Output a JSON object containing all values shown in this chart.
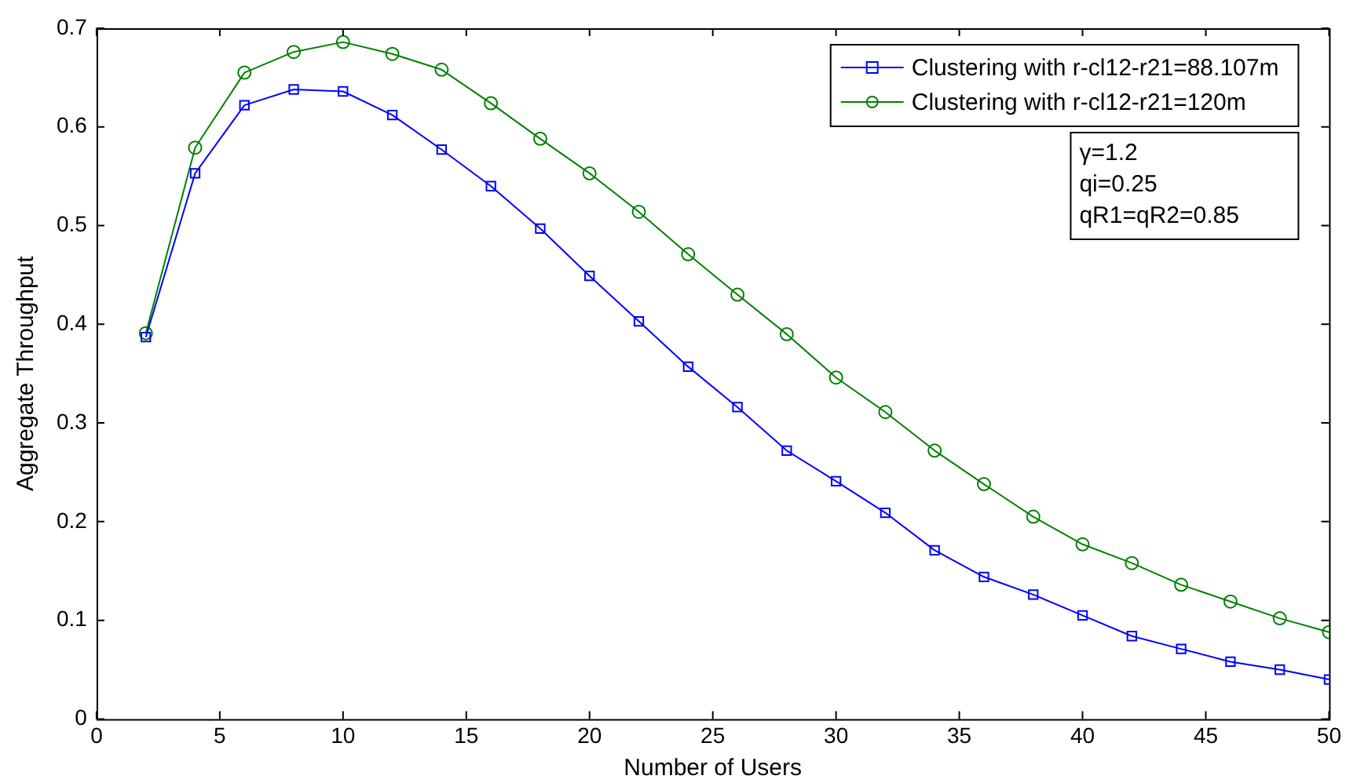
{
  "chart_data": {
    "type": "line",
    "xlabel": "Number of Users",
    "ylabel": "Aggregate Throughput",
    "x": [
      2,
      4,
      6,
      8,
      10,
      12,
      14,
      16,
      18,
      20,
      22,
      24,
      26,
      28,
      30,
      32,
      34,
      36,
      38,
      40,
      42,
      44,
      46,
      48,
      50
    ],
    "series": [
      {
        "name": "Clustering with r-cl12-r21=88.107m",
        "color": "#0000ff",
        "marker": "square",
        "values": [
          0.387,
          0.553,
          0.622,
          0.638,
          0.636,
          0.612,
          0.577,
          0.54,
          0.497,
          0.449,
          0.403,
          0.357,
          0.316,
          0.272,
          0.241,
          0.209,
          0.171,
          0.144,
          0.126,
          0.105,
          0.084,
          0.071,
          0.058,
          0.05,
          0.04
        ]
      },
      {
        "name": "Clustering with r-cl12-r21=120m",
        "color": "#008000",
        "marker": "circle",
        "values": [
          0.391,
          0.579,
          0.655,
          0.676,
          0.686,
          0.674,
          0.658,
          0.624,
          0.588,
          0.553,
          0.514,
          0.471,
          0.43,
          0.39,
          0.346,
          0.311,
          0.272,
          0.238,
          0.205,
          0.177,
          0.158,
          0.136,
          0.119,
          0.102,
          0.088
        ]
      }
    ],
    "xlim": [
      0,
      50
    ],
    "xticks": [
      0,
      5,
      10,
      15,
      20,
      25,
      30,
      35,
      40,
      45,
      50
    ],
    "ylim": [
      0,
      0.7
    ],
    "yticks": [
      0,
      0.1,
      0.2,
      0.3,
      0.4,
      0.5,
      0.6,
      0.7
    ],
    "grid": false,
    "legend": "top right",
    "line_style": "solid",
    "annotations": [
      "γ=1.2",
      "qi=0.25",
      "qR1=qR2=0.85"
    ]
  }
}
